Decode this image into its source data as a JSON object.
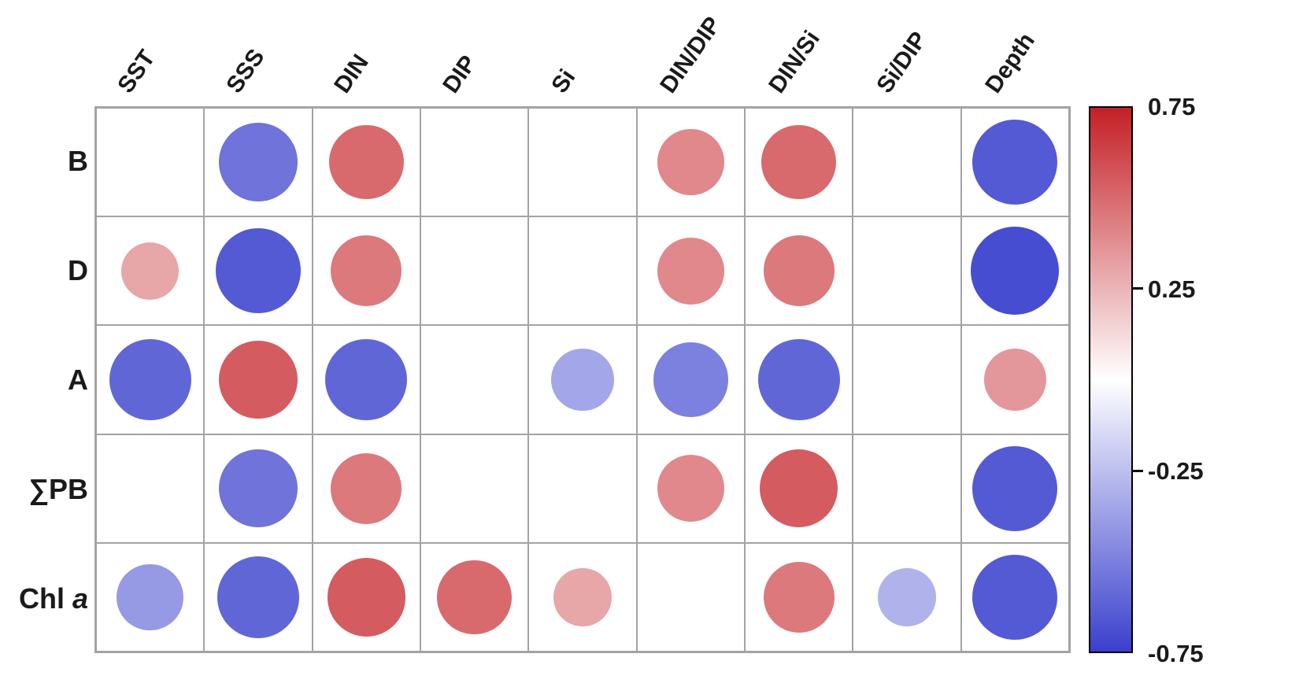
{
  "chart_data": {
    "type": "heatmap",
    "subtype": "correlation-bubble-matrix",
    "columns": [
      "SST",
      "SSS",
      "DIN",
      "DIP",
      "Si",
      "DIN/DIP",
      "DIN/Si",
      "Si/DIP",
      "Depth"
    ],
    "rows": [
      {
        "text": "B",
        "italic": ""
      },
      {
        "text": "D",
        "italic": ""
      },
      {
        "text": "A",
        "italic": ""
      },
      {
        "text": "∑PB",
        "italic": ""
      },
      {
        "text": "Chl ",
        "italic": "a"
      }
    ],
    "values": [
      [
        null,
        -0.55,
        0.5,
        null,
        null,
        0.4,
        0.5,
        null,
        -0.65
      ],
      [
        0.3,
        -0.65,
        0.45,
        null,
        null,
        0.4,
        0.45,
        null,
        -0.7
      ],
      [
        -0.6,
        0.55,
        -0.6,
        null,
        -0.35,
        -0.5,
        -0.6,
        null,
        0.35
      ],
      [
        null,
        -0.55,
        0.45,
        null,
        null,
        0.4,
        0.55,
        null,
        -0.65
      ],
      [
        -0.4,
        -0.6,
        0.55,
        0.5,
        0.3,
        null,
        0.45,
        -0.3,
        -0.65
      ]
    ],
    "value_range": [
      -0.75,
      0.75
    ],
    "positive_color": "#c42026",
    "negative_color": "#3a40cd",
    "grid_line_color": "#a3a3a3",
    "colorbar": {
      "top_color": "#c42026",
      "mid_color": "#ffffff",
      "bottom_color": "#3a40cd",
      "ticks": [
        "0.75",
        "0.25",
        "-0.25",
        "-0.75"
      ],
      "tick_values": [
        0.75,
        0.25,
        -0.25,
        -0.75
      ]
    }
  }
}
